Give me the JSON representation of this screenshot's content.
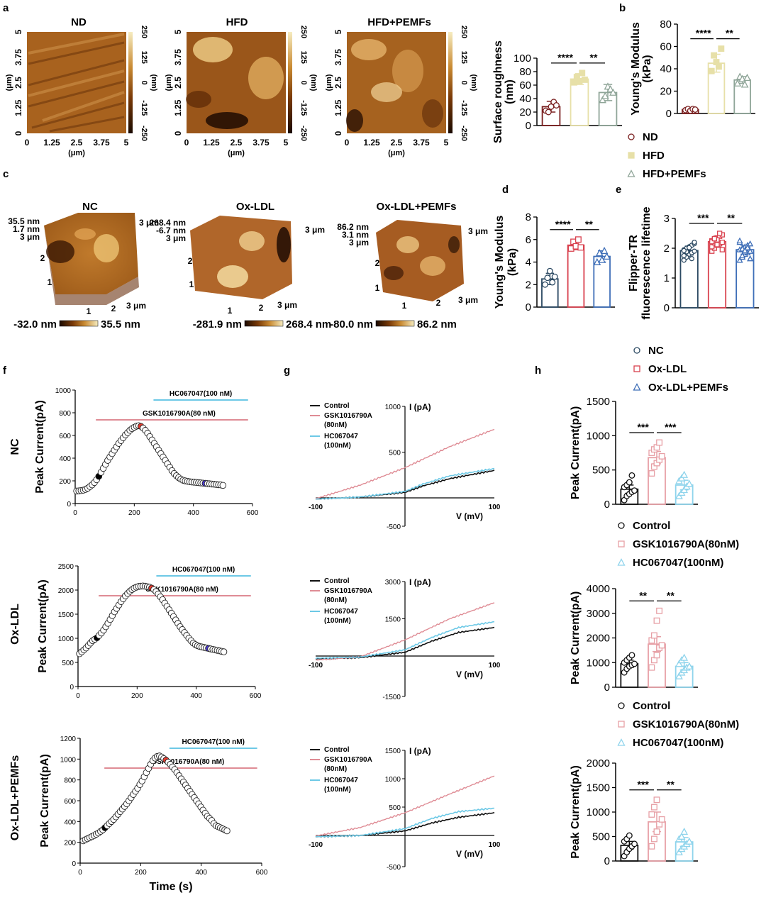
{
  "panel_letters": {
    "a": "a",
    "b": "b",
    "c": "c",
    "d": "d",
    "e": "e",
    "f": "f",
    "g": "g",
    "h": "h"
  },
  "colors": {
    "nd": "#7a1f1f",
    "hfd": "#e7e0a8",
    "hfd_pemfs": "#8fa598",
    "nc": "#2c4a63",
    "oxldl": "#d9424f",
    "oxldl_pemfs": "#3f6fb8",
    "control": "#111111",
    "gsk": "#df8c95",
    "hc": "#6dc9e6",
    "blue_dot": "#4b3ad6",
    "red_dot": "#e23b2f",
    "bar_pink": "#e7a0a6",
    "bar_cyan": "#8fd4ec"
  },
  "afm_maps": {
    "titles": [
      "ND",
      "HFD",
      "HFD+PEMFs"
    ],
    "y_ticks": [
      "0",
      "1.25",
      "2.5",
      "3.75",
      "5"
    ],
    "x_ticks": [
      "0",
      "1.25",
      "2.5",
      "3.75",
      "5"
    ],
    "axis_unit": "(μm)",
    "color_ticks": [
      "250",
      "125",
      "0",
      "-125",
      "-250"
    ],
    "color_unit": "(nm)"
  },
  "afm_3d": {
    "titles": [
      "NC",
      "Ox-LDL",
      "Ox-LDL+PEMFs"
    ],
    "z_labels": [
      [
        "35.5 nm",
        "1.7 nm",
        "3 μm"
      ],
      [
        "268.4 nm",
        "-6.7 nm",
        "3 μm"
      ],
      [
        "86.2 nm",
        "3.1 nm",
        "3 μm"
      ]
    ],
    "axis_ticks": [
      "1",
      "2",
      "3 μm"
    ],
    "y_ticks": [
      "1",
      "2"
    ],
    "corner_label": "3 μm",
    "scale_min": [
      "-32.0 nm",
      "-281.9 nm",
      "-80.0 nm"
    ],
    "scale_max": [
      "35.5 nm",
      "268.4 nm",
      "86.2 nm"
    ]
  },
  "legend_b": {
    "items": [
      "ND",
      "HFD",
      "HFD+PEMFs"
    ]
  },
  "legend_e": {
    "items": [
      "NC",
      "Ox-LDL",
      "Ox-LDL+PEMFs"
    ]
  },
  "legend_h": {
    "items": [
      "Control",
      "GSK1016790A(80nM)",
      "HC067047(100nM)"
    ]
  },
  "timecourse_rows": [
    "NC",
    "Ox-LDL",
    "Ox-LDL+PEMFs"
  ],
  "timecourse_common": {
    "ylabel": "Peak Current(pA)",
    "xlabel": "Time (s)",
    "hc_label": "HC067047(100 nM)",
    "gsk_label": "GSK1016790A(80 nM)"
  },
  "iv_common": {
    "ylabel": "I (pA)",
    "xlabel": "V (mV)",
    "legend": [
      "Control",
      "GSK1016790A",
      "(80nM)",
      "HC067047",
      "(100nM)"
    ]
  },
  "chart_data": [
    {
      "id": "a_roughness",
      "type": "bar",
      "categories": [
        "ND",
        "HFD",
        "HFD+PEMFs"
      ],
      "values": [
        28,
        69,
        49
      ],
      "errors": [
        8,
        8,
        12
      ],
      "points": [
        [
          22,
          20,
          28,
          35,
          30
        ],
        [
          64,
          72,
          66,
          78,
          68
        ],
        [
          38,
          44,
          58,
          54,
          49
        ]
      ],
      "ylabel": "Surface roughness (nm)",
      "ylim": [
        0,
        100
      ],
      "yticks": [
        0,
        20,
        40,
        60,
        80,
        100
      ],
      "significance": [
        {
          "from": 0,
          "to": 1,
          "label": "****"
        },
        {
          "from": 1,
          "to": 2,
          "label": "**"
        }
      ]
    },
    {
      "id": "b_youngs",
      "type": "bar",
      "categories": [
        "ND",
        "HFD",
        "HFD+PEMFs"
      ],
      "values": [
        3.5,
        45,
        30
      ],
      "errors": [
        1,
        8,
        3
      ],
      "points": [
        [
          3,
          4,
          2.5,
          4,
          3.5
        ],
        [
          38,
          52,
          46,
          42,
          58
        ],
        [
          27,
          33,
          31,
          26,
          32
        ]
      ],
      "ylabel": "Young's Modulus (kPa)",
      "ylim": [
        0,
        80
      ],
      "yticks": [
        0,
        20,
        40,
        60,
        80
      ],
      "significance": [
        {
          "from": 0,
          "to": 1,
          "label": "****"
        },
        {
          "from": 1,
          "to": 2,
          "label": "**"
        }
      ]
    },
    {
      "id": "d_youngs",
      "type": "bar",
      "categories": [
        "NC",
        "Ox-LDL",
        "Ox-LDL+PEMFs"
      ],
      "values": [
        2.5,
        5.5,
        4.5
      ],
      "errors": [
        0.5,
        0.4,
        0.5
      ],
      "points": [
        [
          2,
          2.6,
          3.2,
          2.2,
          2.7
        ],
        [
          5.2,
          5.8,
          5.4,
          6,
          5.3
        ],
        [
          4,
          4.8,
          4.2,
          5,
          4.5
        ]
      ],
      "ylabel": "Young's Modulus (kPa)",
      "ylim": [
        0,
        8
      ],
      "yticks": [
        0,
        2,
        4,
        6,
        8
      ],
      "significance": [
        {
          "from": 0,
          "to": 1,
          "label": "****"
        },
        {
          "from": 1,
          "to": 2,
          "label": "**"
        }
      ]
    },
    {
      "id": "e_flipper",
      "type": "bar",
      "categories": [
        "NC",
        "Ox-LDL",
        "Ox-LDL+PEMFs"
      ],
      "values": [
        1.92,
        2.22,
        1.95
      ],
      "errors": [
        0.15,
        0.18,
        0.15
      ],
      "points": [
        [
          1.6,
          1.7,
          1.8,
          1.85,
          1.9,
          1.95,
          2.0,
          2.05,
          2.1,
          2.15,
          1.75,
          1.88,
          2.02,
          1.65,
          2.2,
          1.92
        ],
        [
          1.9,
          2.0,
          2.1,
          2.15,
          2.2,
          2.25,
          2.3,
          2.35,
          2.4,
          2.45,
          2.05,
          2.18,
          2.28,
          2.5,
          1.95,
          2.22,
          2.32,
          2.12
        ],
        [
          1.6,
          1.7,
          1.8,
          1.85,
          1.9,
          1.95,
          2.0,
          2.05,
          2.1,
          2.15,
          2.2,
          1.75,
          1.88,
          2.02,
          1.65,
          2.25,
          1.98,
          1.92
        ]
      ],
      "ylabel": "Flipper-TR fluorescence lifetime",
      "ylim": [
        0,
        3
      ],
      "yticks": [
        0,
        1,
        2,
        3
      ],
      "significance": [
        {
          "from": 0,
          "to": 1,
          "label": "***"
        },
        {
          "from": 1,
          "to": 2,
          "label": "**"
        }
      ]
    },
    {
      "id": "f_nc",
      "type": "scatter",
      "title": "NC",
      "ylabel": "Peak Current(pA)",
      "xlim": [
        0,
        600
      ],
      "ylim": [
        0,
        1000
      ],
      "xticks": [
        0,
        200,
        400,
        600
      ],
      "yticks": [
        0,
        200,
        400,
        600,
        800,
        1000
      ],
      "t0": 5,
      "dt": 7.5,
      "values": [
        110,
        112,
        115,
        118,
        125,
        135,
        150,
        165,
        185,
        210,
        240,
        275,
        310,
        345,
        380,
        410,
        440,
        470,
        500,
        530,
        555,
        580,
        605,
        625,
        645,
        660,
        672,
        682,
        686,
        680,
        665,
        645,
        620,
        590,
        560,
        530,
        500,
        470,
        440,
        410,
        380,
        350,
        320,
        290,
        265,
        245,
        228,
        215,
        205,
        200,
        196,
        192,
        190,
        188,
        186,
        184,
        182,
        180,
        178,
        176,
        174,
        172,
        170,
        168,
        166,
        164,
        160
      ],
      "markers": {
        "black": 10,
        "red": 29,
        "blue": 58
      },
      "gsk_range": [
        70,
        585
      ],
      "hc_range": [
        265,
        585
      ]
    },
    {
      "id": "f_oxldl",
      "type": "scatter",
      "title": "Ox-LDL",
      "ylabel": "Peak Current(pA)",
      "xlim": [
        0,
        600
      ],
      "ylim": [
        0,
        2500
      ],
      "xticks": [
        0,
        200,
        400,
        600
      ],
      "yticks": [
        0,
        500,
        1000,
        1500,
        2000,
        2500
      ],
      "t0": 5,
      "dt": 7.4,
      "values": [
        680,
        720,
        760,
        800,
        850,
        900,
        950,
        980,
        1010,
        1060,
        1110,
        1170,
        1240,
        1310,
        1390,
        1470,
        1550,
        1620,
        1690,
        1760,
        1820,
        1880,
        1930,
        1975,
        2010,
        2040,
        2060,
        2075,
        2080,
        2085,
        2080,
        2070,
        2060,
        2040,
        2010,
        1970,
        1920,
        1860,
        1800,
        1730,
        1660,
        1590,
        1520,
        1450,
        1380,
        1310,
        1240,
        1180,
        1120,
        1060,
        1000,
        950,
        900,
        870,
        845,
        830,
        820,
        810,
        800,
        790,
        780,
        770,
        760,
        750,
        740,
        730,
        720
      ],
      "markers": {
        "black": 8,
        "red": 33,
        "blue": 59
      },
      "gsk_range": [
        70,
        585
      ],
      "hc_range": [
        265,
        585
      ]
    },
    {
      "id": "f_oxldl_pemfs",
      "type": "scatter",
      "title": "Ox-LDL+PEMFs",
      "ylabel": "Peak Current(pA)",
      "xlabel": "Time (s)",
      "xlim": [
        0,
        600
      ],
      "ylim": [
        0,
        1200
      ],
      "xticks": [
        0,
        200,
        400,
        600
      ],
      "yticks": [
        0,
        200,
        400,
        600,
        800,
        1000,
        1200
      ],
      "t0": 10,
      "dt": 7.2,
      "values": [
        215,
        225,
        235,
        245,
        255,
        265,
        278,
        290,
        305,
        320,
        340,
        360,
        380,
        400,
        420,
        445,
        470,
        495,
        520,
        545,
        570,
        600,
        630,
        660,
        690,
        720,
        755,
        790,
        830,
        870,
        910,
        950,
        985,
        1010,
        1025,
        1030,
        1020,
        1005,
        990,
        970,
        950,
        925,
        900,
        870,
        840,
        810,
        780,
        750,
        720,
        690,
        660,
        630,
        600,
        570,
        540,
        510,
        480,
        450,
        430,
        410,
        380,
        360,
        350,
        340,
        330,
        320,
        310
      ],
      "markers": {
        "black": 10,
        "red": 38,
        "blue": 69
      },
      "gsk_range": [
        80,
        585
      ],
      "hc_range": [
        295,
        585
      ]
    },
    {
      "id": "g_nc",
      "type": "line",
      "title": "NC",
      "xlim": [
        -100,
        100
      ],
      "ylim": [
        -500,
        1000
      ],
      "xticks": [
        -100,
        100
      ],
      "yticks": [
        -500,
        500,
        1000
      ],
      "series": [
        {
          "name": "Control",
          "x": [
            -100,
            -50,
            0,
            20,
            50,
            100
          ],
          "y": [
            -20,
            10,
            60,
            130,
            210,
            300
          ]
        },
        {
          "name": "GSK1016790A (80nM)",
          "x": [
            -100,
            -50,
            0,
            50,
            100
          ],
          "y": [
            -10,
            140,
            330,
            560,
            750
          ]
        },
        {
          "name": "HC067047 (100nM)",
          "x": [
            -100,
            -50,
            0,
            20,
            50,
            100
          ],
          "y": [
            -20,
            10,
            70,
            150,
            240,
            320
          ]
        }
      ]
    },
    {
      "id": "g_oxldl",
      "type": "line",
      "title": "Ox-LDL",
      "xlim": [
        -100,
        100
      ],
      "ylim": [
        -1500,
        3000
      ],
      "xticks": [
        -100,
        100
      ],
      "yticks": [
        -1500,
        1500,
        3000
      ],
      "series": [
        {
          "name": "Control",
          "x": [
            -100,
            -50,
            0,
            30,
            60,
            100
          ],
          "y": [
            -100,
            -60,
            150,
            600,
            950,
            1150
          ]
        },
        {
          "name": "GSK1016790A (80nM)",
          "x": [
            -100,
            -50,
            0,
            50,
            100
          ],
          "y": [
            -150,
            -30,
            650,
            1500,
            2150
          ]
        },
        {
          "name": "HC067047 (100nM)",
          "x": [
            -100,
            -50,
            0,
            30,
            60,
            100
          ],
          "y": [
            -80,
            -40,
            250,
            750,
            1150,
            1380
          ]
        }
      ]
    },
    {
      "id": "g_oxldl_pemfs",
      "type": "line",
      "title": "Ox-LDL+PEMFs",
      "xlim": [
        -100,
        100
      ],
      "ylim": [
        -500,
        1500
      ],
      "xticks": [
        -100,
        100
      ],
      "yticks": [
        -500,
        500,
        1000,
        1500
      ],
      "series": [
        {
          "name": "Control",
          "x": [
            -100,
            -50,
            0,
            30,
            60,
            100
          ],
          "y": [
            -20,
            0,
            80,
            220,
            320,
            400
          ]
        },
        {
          "name": "GSK1016790A (80nM)",
          "x": [
            -100,
            -50,
            0,
            50,
            100
          ],
          "y": [
            -10,
            140,
            400,
            730,
            1050
          ]
        },
        {
          "name": "HC067047 (100nM)",
          "x": [
            -100,
            -50,
            0,
            30,
            60,
            100
          ],
          "y": [
            -20,
            0,
            120,
            300,
            420,
            480
          ]
        }
      ]
    },
    {
      "id": "h_nc",
      "type": "bar",
      "categories": [
        "Control",
        "GSK1016790A(80nM)",
        "HC067047(100nM)"
      ],
      "values": [
        220,
        680,
        280
      ],
      "errors": [
        60,
        90,
        70
      ],
      "points": [
        [
          60,
          120,
          150,
          180,
          200,
          250,
          280,
          320,
          420
        ],
        [
          450,
          550,
          600,
          650,
          700,
          750,
          800,
          830,
          900
        ],
        [
          120,
          170,
          210,
          260,
          300,
          340,
          380,
          430
        ]
      ],
      "ylabel": "Peak Current(pA)",
      "ylim": [
        0,
        1500
      ],
      "yticks": [
        0,
        500,
        1000,
        1500
      ],
      "significance": [
        {
          "from": 0,
          "to": 1,
          "label": "***"
        },
        {
          "from": 1,
          "to": 2,
          "label": "***"
        }
      ]
    },
    {
      "id": "h_oxldl",
      "type": "bar",
      "categories": [
        "Control",
        "GSK1016790A(80nM)",
        "HC067047(100nM)"
      ],
      "values": [
        950,
        1750,
        850
      ],
      "errors": [
        150,
        300,
        150
      ],
      "points": [
        [
          600,
          750,
          850,
          900,
          950,
          1000,
          1100,
          1200,
          1300
        ],
        [
          800,
          1100,
          1300,
          1600,
          1700,
          1900,
          2100,
          2700,
          3100
        ],
        [
          450,
          600,
          700,
          800,
          850,
          950,
          1100,
          1200
        ]
      ],
      "ylabel": "Peak Current(pA)",
      "ylim": [
        0,
        4000
      ],
      "yticks": [
        0,
        1000,
        2000,
        3000,
        4000
      ],
      "significance": [
        {
          "from": 0,
          "to": 1,
          "label": "**"
        },
        {
          "from": 1,
          "to": 2,
          "label": "**"
        }
      ]
    },
    {
      "id": "h_oxldl_pemfs",
      "type": "bar",
      "categories": [
        "Control",
        "GSK1016790A(80nM)",
        "HC067047(100nM)"
      ],
      "values": [
        320,
        800,
        390
      ],
      "errors": [
        80,
        200,
        90
      ],
      "points": [
        [
          100,
          180,
          250,
          300,
          350,
          400,
          450,
          520
        ],
        [
          300,
          450,
          600,
          750,
          850,
          950,
          1100,
          1250
        ],
        [
          180,
          250,
          300,
          350,
          400,
          450,
          500,
          600
        ]
      ],
      "ylabel": "Peak Current(pA)",
      "ylim": [
        0,
        2000
      ],
      "yticks": [
        0,
        500,
        1000,
        1500,
        2000
      ],
      "significance": [
        {
          "from": 0,
          "to": 1,
          "label": "***"
        },
        {
          "from": 1,
          "to": 2,
          "label": "**"
        }
      ]
    }
  ]
}
